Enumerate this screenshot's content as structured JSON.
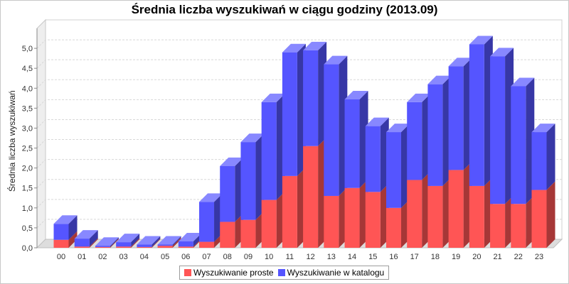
{
  "chart_data": {
    "type": "bar",
    "stacked": true,
    "three_d": true,
    "title": "Średnia liczba wyszukiwań w ciągu godziny (2013.09)",
    "xlabel": "",
    "ylabel": "Średnia liczba wyszukiwań",
    "ylim": [
      0,
      5.5
    ],
    "yticks": [
      "0,0",
      "0,5",
      "1,0",
      "1,5",
      "2,0",
      "2,5",
      "3,0",
      "3,5",
      "4,0",
      "4,5",
      "5,0"
    ],
    "grid": true,
    "legend_position": "bottom",
    "categories": [
      "00",
      "01",
      "02",
      "03",
      "04",
      "05",
      "06",
      "07",
      "08",
      "09",
      "10",
      "11",
      "12",
      "13",
      "14",
      "15",
      "16",
      "17",
      "18",
      "19",
      "20",
      "21",
      "22",
      "23"
    ],
    "series": [
      {
        "name": "Wyszukiwanie proste",
        "color": "#ff5555",
        "values": [
          0.2,
          0.03,
          0.02,
          0.03,
          0.02,
          0.05,
          0.03,
          0.15,
          0.65,
          0.7,
          1.2,
          1.8,
          2.55,
          1.3,
          1.5,
          1.4,
          1.0,
          1.7,
          1.55,
          1.95,
          1.55,
          1.1,
          1.1,
          1.45
        ]
      },
      {
        "name": "Wyszukiwanie w katalogu",
        "color": "#5555ff",
        "values": [
          0.4,
          0.2,
          0.03,
          0.11,
          0.06,
          0.03,
          0.13,
          1.0,
          1.4,
          1.95,
          2.45,
          3.1,
          2.4,
          3.3,
          2.22,
          1.65,
          1.9,
          1.95,
          2.55,
          2.6,
          3.55,
          3.7,
          2.95,
          1.45
        ]
      }
    ]
  }
}
